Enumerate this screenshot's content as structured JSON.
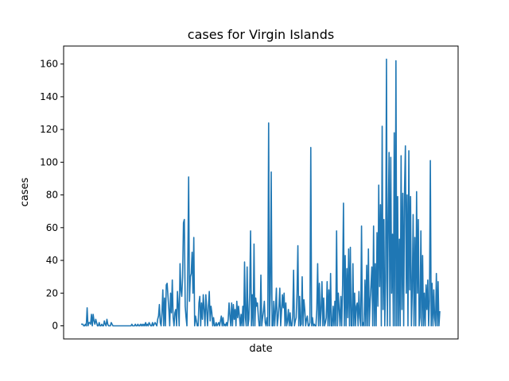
{
  "chart_data": {
    "type": "line",
    "title": "cases for Virgin Islands",
    "xlabel": "date",
    "ylabel": "cases",
    "ylim": [
      -8,
      171
    ],
    "yticks": [
      0,
      20,
      40,
      60,
      80,
      100,
      120,
      140,
      160
    ],
    "xticks": [],
    "grid": false,
    "legend": "none",
    "color": "#1f77b4",
    "series": [
      {
        "values": [
          1,
          1,
          1,
          0,
          0,
          1,
          0,
          11,
          0,
          2,
          2,
          1,
          7,
          0,
          7,
          3,
          1,
          4,
          2,
          0,
          0,
          2,
          0,
          0,
          1,
          0,
          0,
          3,
          1,
          0,
          4,
          1,
          0,
          0,
          0,
          2,
          1,
          0,
          0,
          0,
          0,
          0,
          0,
          0,
          0,
          0,
          0,
          0,
          0,
          0,
          0,
          0,
          0,
          0,
          0,
          0,
          0,
          0,
          0,
          1,
          0,
          0,
          0,
          1,
          0,
          0,
          1,
          0,
          0,
          1,
          0,
          1,
          0,
          1,
          0,
          2,
          0,
          1,
          0,
          2,
          1,
          0,
          0,
          2,
          0,
          1,
          2,
          1,
          0,
          4,
          6,
          13,
          2,
          0,
          8,
          22,
          0,
          17,
          0,
          25,
          26,
          18,
          10,
          0,
          20,
          8,
          28,
          5,
          0,
          8,
          10,
          0,
          21,
          12,
          0,
          38,
          22,
          18,
          30,
          63,
          65,
          12,
          5,
          0,
          36,
          91,
          15,
          30,
          32,
          45,
          20,
          54,
          0,
          6,
          3,
          0,
          0,
          14,
          18,
          0,
          14,
          4,
          19,
          10,
          0,
          19,
          10,
          0,
          12,
          21,
          3,
          12,
          8,
          0,
          5,
          0,
          0,
          2,
          0,
          1,
          2,
          0,
          3,
          6,
          0,
          5,
          0,
          1,
          0,
          2,
          0,
          4,
          14,
          6,
          0,
          14,
          0,
          13,
          4,
          10,
          0,
          15,
          5,
          12,
          6,
          0,
          7,
          0,
          12,
          0,
          39,
          5,
          0,
          36,
          0,
          4,
          20,
          58,
          0,
          19,
          0,
          50,
          0,
          17,
          12,
          14,
          6,
          0,
          0,
          31,
          0,
          5,
          9,
          15,
          2,
          0,
          5,
          0,
          124,
          0,
          20,
          94,
          0,
          0,
          15,
          0,
          10,
          23,
          0,
          5,
          12,
          23,
          0,
          9,
          19,
          11,
          20,
          0,
          14,
          0,
          3,
          10,
          0,
          8,
          0,
          0,
          6,
          34,
          0,
          3,
          5,
          20,
          49,
          0,
          18,
          0,
          1,
          30,
          0,
          16,
          10,
          0,
          4,
          6,
          0,
          0,
          2,
          109,
          0,
          5,
          0,
          1,
          0,
          0,
          10,
          38,
          0,
          26,
          0,
          10,
          27,
          0,
          17,
          0,
          2,
          5,
          27,
          0,
          22,
          0,
          32,
          0,
          0,
          12,
          0,
          15,
          0,
          58,
          0,
          20,
          10,
          0,
          18,
          0,
          25,
          75,
          0,
          43,
          0,
          35,
          5,
          47,
          0,
          48,
          0,
          0,
          38,
          0,
          20,
          0,
          12,
          14,
          0,
          21,
          5,
          0,
          61,
          0,
          2,
          0,
          28,
          0,
          37,
          0,
          47,
          0,
          15,
          25,
          36,
          0,
          61,
          0,
          38,
          0,
          57,
          12,
          86,
          24,
          74,
          0,
          122,
          10,
          65,
          0,
          28,
          163,
          0,
          59,
          106,
          0,
          103,
          20,
          56,
          0,
          118,
          0,
          162,
          0,
          79,
          0,
          53,
          0,
          104,
          10,
          81,
          0,
          84,
          110,
          20,
          80,
          0,
          107,
          22,
          79,
          0,
          22,
          68,
          0,
          54,
          0,
          82,
          20,
          65,
          0,
          5,
          58,
          0,
          43,
          0,
          20,
          0,
          25,
          10,
          28,
          0,
          16,
          101,
          0,
          26,
          0,
          22,
          5,
          0,
          32,
          0,
          27,
          0,
          9
        ]
      }
    ]
  }
}
